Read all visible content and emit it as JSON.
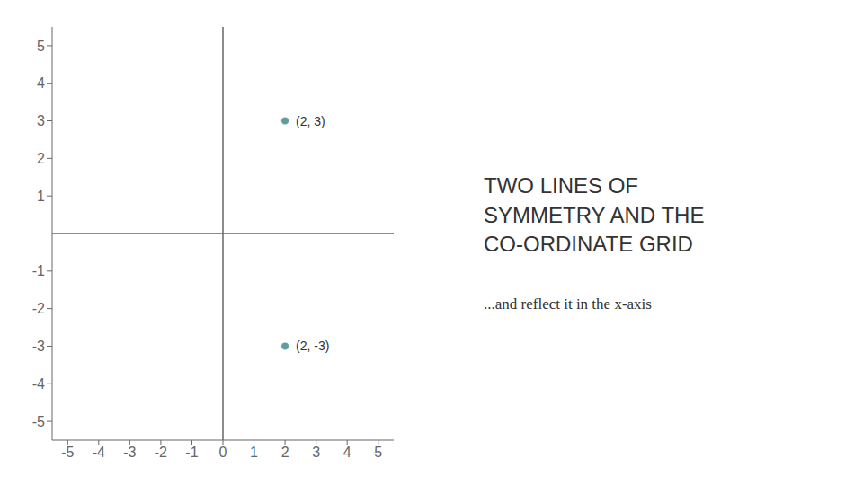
{
  "chart_data": {
    "type": "scatter",
    "title": "TWO LINES OF\nSYMMETRY AND THE\nCO-ORDINATE GRID",
    "subtitle": "...and reflect it in the x-axis",
    "x": [
      2,
      2
    ],
    "values": [
      3,
      -3
    ],
    "color": "#5f9ea0",
    "xlim": [
      -5.5,
      5.5
    ],
    "ylim": [
      -5.5,
      5.5
    ],
    "xticks": [
      -5,
      -4,
      -3,
      -2,
      -1,
      0,
      1,
      2,
      3,
      4,
      5
    ],
    "yticks": [
      -5,
      -4,
      -3,
      -2,
      -1,
      1,
      2,
      3,
      4,
      5
    ],
    "grid": false,
    "annotations": [
      {
        "x": 2,
        "y": 3,
        "text": "(2, 3)"
      },
      {
        "x": 2,
        "y": -3,
        "text": "(2, -3)"
      }
    ]
  }
}
